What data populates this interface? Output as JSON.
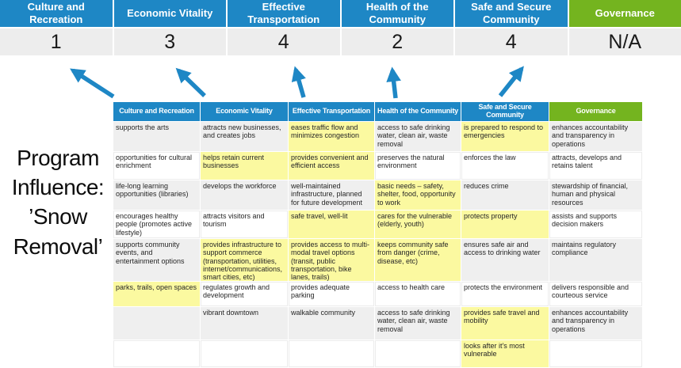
{
  "colors": {
    "blue": "#1E87C5",
    "green": "#74B41F",
    "highlight": "#FBF9A0",
    "row_gray": "#EFEFEF",
    "score_band": "#EDEDED",
    "arrow": "#1E87C5"
  },
  "title": {
    "text": "Program\nInfluence:\n’Snow\nRemoval’"
  },
  "summary": {
    "items": [
      {
        "label": "Culture and\nRecreation",
        "score": "1",
        "theme": "blue"
      },
      {
        "label": "Economic Vitality",
        "score": "3",
        "theme": "blue"
      },
      {
        "label": "Effective\nTransportation",
        "score": "4",
        "theme": "blue"
      },
      {
        "label": "Health of the\nCommunity",
        "score": "2",
        "theme": "blue"
      },
      {
        "label": "Safe and Secure\nCommunity",
        "score": "4",
        "theme": "blue"
      },
      {
        "label": "Governance",
        "score": "N/A",
        "theme": "green"
      }
    ]
  },
  "arrows": {
    "count": 5,
    "description": "blue arrows pointing from matrix header up to score band"
  },
  "matrix": {
    "columns": [
      {
        "header": "Culture and Recreation",
        "theme": "blue",
        "cells": [
          {
            "text": "supports the arts",
            "highlight": false
          },
          {
            "text": "opportunities for cultural enrichment",
            "highlight": false
          },
          {
            "text": "life-long learning opportunities (libraries)",
            "highlight": false
          },
          {
            "text": "encourages healthy people (promotes active lifestyle)",
            "highlight": false
          },
          {
            "text": "supports community events, and entertainment options",
            "highlight": false
          },
          {
            "text": "parks, trails, open spaces",
            "highlight": true
          },
          {
            "text": "",
            "highlight": false
          },
          {
            "text": "",
            "highlight": false
          }
        ]
      },
      {
        "header": "Economic Vitality",
        "theme": "blue",
        "cells": [
          {
            "text": "attracts new businesses, and creates jobs",
            "highlight": false
          },
          {
            "text": "helps retain current businesses",
            "highlight": true
          },
          {
            "text": "develops the workforce",
            "highlight": false
          },
          {
            "text": "attracts visitors and tourism",
            "highlight": false
          },
          {
            "text": "provides infrastructure to support commerce (transportation, utilities, internet/communications, smart cities, etc)",
            "highlight": true
          },
          {
            "text": "regulates growth and development",
            "highlight": false
          },
          {
            "text": "vibrant downtown",
            "highlight": false
          },
          {
            "text": "",
            "highlight": false
          }
        ]
      },
      {
        "header": "Effective Transportation",
        "theme": "blue",
        "cells": [
          {
            "text": "eases traffic flow and minimizes congestion",
            "highlight": true
          },
          {
            "text": "provides convenient and efficient access",
            "highlight": true
          },
          {
            "text": "well-maintained infrastructure, planned for future development",
            "highlight": false
          },
          {
            "text": "safe travel, well-lit",
            "highlight": true
          },
          {
            "text": "provides access to multi-modal travel options (transit, public transportation, bike lanes, trails)",
            "highlight": true
          },
          {
            "text": "provides adequate parking",
            "highlight": false
          },
          {
            "text": "walkable community",
            "highlight": false
          },
          {
            "text": "",
            "highlight": false
          }
        ]
      },
      {
        "header": "Health of the Community",
        "theme": "blue",
        "cells": [
          {
            "text": "access to safe drinking water, clean air, waste removal",
            "highlight": false
          },
          {
            "text": "preserves the natural environment",
            "highlight": false
          },
          {
            "text": "basic needs – safety, shelter, food, opportunity to work",
            "highlight": true
          },
          {
            "text": "cares for the vulnerable (elderly, youth)",
            "highlight": true
          },
          {
            "text": "keeps community safe from danger (crime, disease, etc)",
            "highlight": true
          },
          {
            "text": "access to health care",
            "highlight": false
          },
          {
            "text": "access to safe drinking water, clean air, waste removal",
            "highlight": false
          },
          {
            "text": "",
            "highlight": false
          }
        ]
      },
      {
        "header": "Safe and Secure\nCommunity",
        "theme": "blue",
        "cells": [
          {
            "text": "is prepared to respond to emergencies",
            "highlight": true
          },
          {
            "text": "enforces the law",
            "highlight": false
          },
          {
            "text": "reduces crime",
            "highlight": false
          },
          {
            "text": "protects property",
            "highlight": true
          },
          {
            "text": "ensures safe air and access to drinking water",
            "highlight": false
          },
          {
            "text": "protects the environment",
            "highlight": false
          },
          {
            "text": "provides safe travel and mobility",
            "highlight": true
          },
          {
            "text": "looks after it's most vulnerable",
            "highlight": true
          }
        ]
      },
      {
        "header": "Governance",
        "theme": "green",
        "cells": [
          {
            "text": "enhances accountability and transparency in operations",
            "highlight": false
          },
          {
            "text": "attracts, develops and retains talent",
            "highlight": false
          },
          {
            "text": "stewardship of financial, human and physical resources",
            "highlight": false
          },
          {
            "text": "assists and supports decision makers",
            "highlight": false
          },
          {
            "text": "maintains regulatory compliance",
            "highlight": false
          },
          {
            "text": "delivers responsible and courteous service",
            "highlight": false
          },
          {
            "text": "enhances accountability and transparency in operations",
            "highlight": false
          },
          {
            "text": "",
            "highlight": false
          }
        ]
      }
    ]
  }
}
